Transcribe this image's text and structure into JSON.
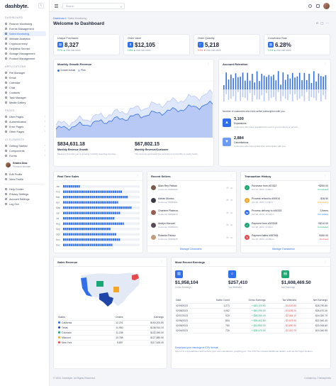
{
  "app": {
    "logo": "dashbyte.",
    "logo_tab": "‹"
  },
  "sidebar": {
    "sections": [
      {
        "title": "DASHBOARD",
        "items": [
          {
            "label": "Finance Monitoring"
          },
          {
            "label": "Events Management"
          },
          {
            "label": "Sales Monitoring",
            "active": true
          },
          {
            "label": "Website Analytics"
          },
          {
            "label": "Cryptocurrency"
          },
          {
            "label": "Helpdesk Service"
          },
          {
            "label": "Storage Management"
          },
          {
            "label": "Product Management"
          }
        ]
      },
      {
        "title": "APPLICATIONS",
        "items": [
          {
            "label": "File Manager"
          },
          {
            "label": "Email"
          },
          {
            "label": "Calendar"
          },
          {
            "label": "Chat"
          },
          {
            "label": "Contacts"
          },
          {
            "label": "Task Manager"
          },
          {
            "label": "Media Gallery"
          }
        ]
      },
      {
        "title": "PAGES",
        "items": [
          {
            "label": "User Pages",
            "caret": true
          },
          {
            "label": "Authentication",
            "caret": true
          },
          {
            "label": "Error Pages",
            "caret": true
          },
          {
            "label": "Other Pages",
            "caret": true
          }
        ]
      },
      {
        "title": "UI ELEMENTS",
        "items": [
          {
            "label": "Getting Started",
            "caret": true
          },
          {
            "label": "Components",
            "caret": true
          },
          {
            "label": "Forms",
            "caret": true
          }
        ]
      }
    ],
    "user": {
      "name": "Shaira Diaz",
      "role": "Premium Member"
    },
    "profile_items": [
      {
        "label": "Edit Profile"
      },
      {
        "label": "View Profile"
      }
    ],
    "settings_items": [
      {
        "label": "Help Center"
      },
      {
        "label": "Privacy Settings"
      },
      {
        "label": "Account Settings"
      },
      {
        "label": "Log Out"
      }
    ]
  },
  "topbar": {
    "search_placeholder": "Search"
  },
  "header": {
    "crumb_root": "Dashboard",
    "crumb_sep": "/",
    "crumb_current": "Sales Monitoring",
    "title": "Welcome to Dashboard"
  },
  "kpis": [
    {
      "label": "Unique Purchases",
      "value": "8,327",
      "delta": "0.7% ▲",
      "delta_dir": "up",
      "suffix": "than last week",
      "icon": "▤"
    },
    {
      "label": "Order Value",
      "value": "$12,105",
      "delta": "1.8% ▲",
      "delta_dir": "up",
      "suffix": "than last week",
      "icon": "$"
    },
    {
      "label": "Order Quantity",
      "value": "5,218",
      "delta": "0.3% ▼",
      "delta_dir": "down",
      "suffix": "than last week",
      "icon": "🛒"
    },
    {
      "label": "Conversion Rate",
      "value": "6.28%",
      "delta": "2.1% ▲",
      "delta_dir": "up",
      "suffix": "than last week",
      "icon": "▥"
    }
  ],
  "growth": {
    "title": "Monthly Growth Revenue",
    "legend": [
      {
        "name": "Growth Actual",
        "color": "#2f6fed"
      },
      {
        "name": "Plan",
        "color": "#b9c9f5"
      }
    ],
    "stat1": {
      "value": "$834,631.18",
      "label": "Monthly Revenue Growth",
      "desc": "Measure how fast you're growing monthly recurring revenue."
    },
    "stat2": {
      "value": "$67,802.15",
      "label": "Monthly Revenue/Customer",
      "desc": "The revenue generated per account on a monthly or yearly basis."
    }
  },
  "retention": {
    "title": "Account Retention",
    "caption": "Number of customers who have active subscription with you.",
    "items": [
      {
        "value": "3,100",
        "label": "Expansions",
        "desc": "Customers who have upgraded the level of your products or service.",
        "color": "#2f6fed",
        "icon": "▲"
      },
      {
        "value": "2,884",
        "label": "Cancellations",
        "desc": "Customers who have ended their subscription with you.",
        "color": "#6e9bf5",
        "icon": "▼"
      }
    ]
  },
  "realtime": {
    "title": "Real Time Sales",
    "labels": [
      "Jan",
      "Feb",
      "Mar",
      "Apr",
      "May",
      "Jun",
      "Jul",
      "Aug",
      "Sep",
      "Oct",
      "Nov",
      "Dec"
    ]
  },
  "sellers": {
    "title": "Recent Sellers",
    "link": "Manage Customers",
    "rows": [
      {
        "name": "Allan Rey Palban",
        "id": "Customer ID#00222",
        "color": "#7b5a4b"
      },
      {
        "name": "Adrian Monino",
        "id": "Customer ID#00221",
        "color": "#3d3a44"
      },
      {
        "name": "Charlene Plateros",
        "id": "Customer ID#00223",
        "color": "#9a5d52"
      },
      {
        "name": "Analyn Morconi",
        "id": "Customer ID#00224",
        "color": "#5b4b58"
      },
      {
        "name": "Rolando Paloso",
        "id": "Customer ID#00225",
        "color": "#c29b7e"
      }
    ]
  },
  "transactions": {
    "title": "Transaction History",
    "link": "Manage Transaction",
    "rows": [
      {
        "title": "Purchase from #10322",
        "date": "Oct 21, 2023, 3:30pm",
        "amount": "+$250.00",
        "status": "Completed",
        "color": "#18a872",
        "scolor": "#18a872",
        "icon": "✓"
      },
      {
        "title": "Process refund to #00910",
        "date": "Oct 19, 2023, 2:18pm",
        "amount": "-$16.50",
        "status": "Processing",
        "color": "#f5a623",
        "scolor": "#f5a623",
        "icon": "↻"
      },
      {
        "title": "Process delivery to #44333",
        "date": "Oct 18, 2023, 12:10pm",
        "amount": "3 Items",
        "status": "For pickup",
        "color": "#2f6fed",
        "scolor": "#2f6fed",
        "icon": "⇆"
      },
      {
        "title": "Payment from #023328",
        "date": "Oct 18, 2023, 4:10pm",
        "amount": "+$210.00",
        "status": "Completed",
        "color": "#18a872",
        "scolor": "#18a872",
        "icon": "✓"
      },
      {
        "title": "Payment failed #087651",
        "date": "Oct 15, 2023, 12:05pm",
        "amount": "$150.00",
        "status": "Declined",
        "color": "#e5484d",
        "scolor": "#e5484d",
        "icon": "✕"
      }
    ]
  },
  "sales_revenue": {
    "title": "Sales Revenue",
    "headers": [
      "States",
      "Orders",
      "Earnings"
    ],
    "rows": [
      {
        "state": "California",
        "orders": "12,201",
        "earnings": "$150,200.80",
        "color": "#2f6fed"
      },
      {
        "state": "Texas",
        "orders": "11,950",
        "earnings": "$138,910.20",
        "color": "#1f45a8"
      },
      {
        "state": "Colorado",
        "orders": "11,198",
        "earnings": "$132,050.00",
        "color": "#18a872"
      },
      {
        "state": "Missouri",
        "orders": "10,788",
        "earnings": "$127,880.50",
        "color": "#f5a623"
      },
      {
        "state": "New York",
        "orders": "8,897",
        "earnings": "$117,626.40",
        "color": "#e5484d"
      }
    ]
  },
  "earnings": {
    "title": "Most Recent Earnings",
    "boxes": [
      {
        "value": "$1,958,104",
        "label": "Gross Earnings",
        "color": "#2f6fed",
        "icon": "▥"
      },
      {
        "value": "$257,410",
        "label": "Tax Withheld",
        "color": "#2f6fed",
        "icon": "⌂"
      },
      {
        "value": "$1,608,469.50",
        "label": "Net Earnings",
        "color": "#18a872",
        "icon": "▤"
      }
    ],
    "headers": [
      "Date",
      "Sales Count",
      "Gross Earnings",
      "Tax Withheld",
      "Net Earnings"
    ],
    "rows": [
      {
        "date": "02/09/2023",
        "count": "1,273",
        "gross": "+ $43,120.50",
        "tax": "- $3,120.80",
        "net": "$28,790.80"
      },
      {
        "date": "02/08/2023",
        "count": "1,062",
        "gross": "+ $40,290.00",
        "tax": "- $3,105.20",
        "net": "$26,470.10"
      },
      {
        "date": "02/07/2023",
        "count": "920",
        "gross": "+ $36,250.40",
        "tax": "- $2,984.10",
        "net": "$24,320.70"
      },
      {
        "date": "02/06/2023",
        "count": "804",
        "gross": "+ $35,402.80",
        "tax": "- $2,875.90",
        "net": "$22,540.40"
      },
      {
        "date": "02/05/2023",
        "count": "760",
        "gross": "+ $31,890.20",
        "tax": "- $2,650.30",
        "net": "$20,918.60"
      },
      {
        "date": "02/04/2023",
        "count": "720",
        "gross": "+ $28,470.00",
        "tax": "- $2,410.70",
        "net": "$19,340.90"
      }
    ],
    "cta": "Download your earnings in CSV format.",
    "cta_desc": "Open it in a spreadsheet and perform your own calculations, graphing etc. The CSV file contains additional details, such as the buyer location."
  },
  "footer": {
    "copyright": "© 2023. Dashbyte. All Rights Reserved.",
    "credit": "Created by: Themepixels"
  }
}
